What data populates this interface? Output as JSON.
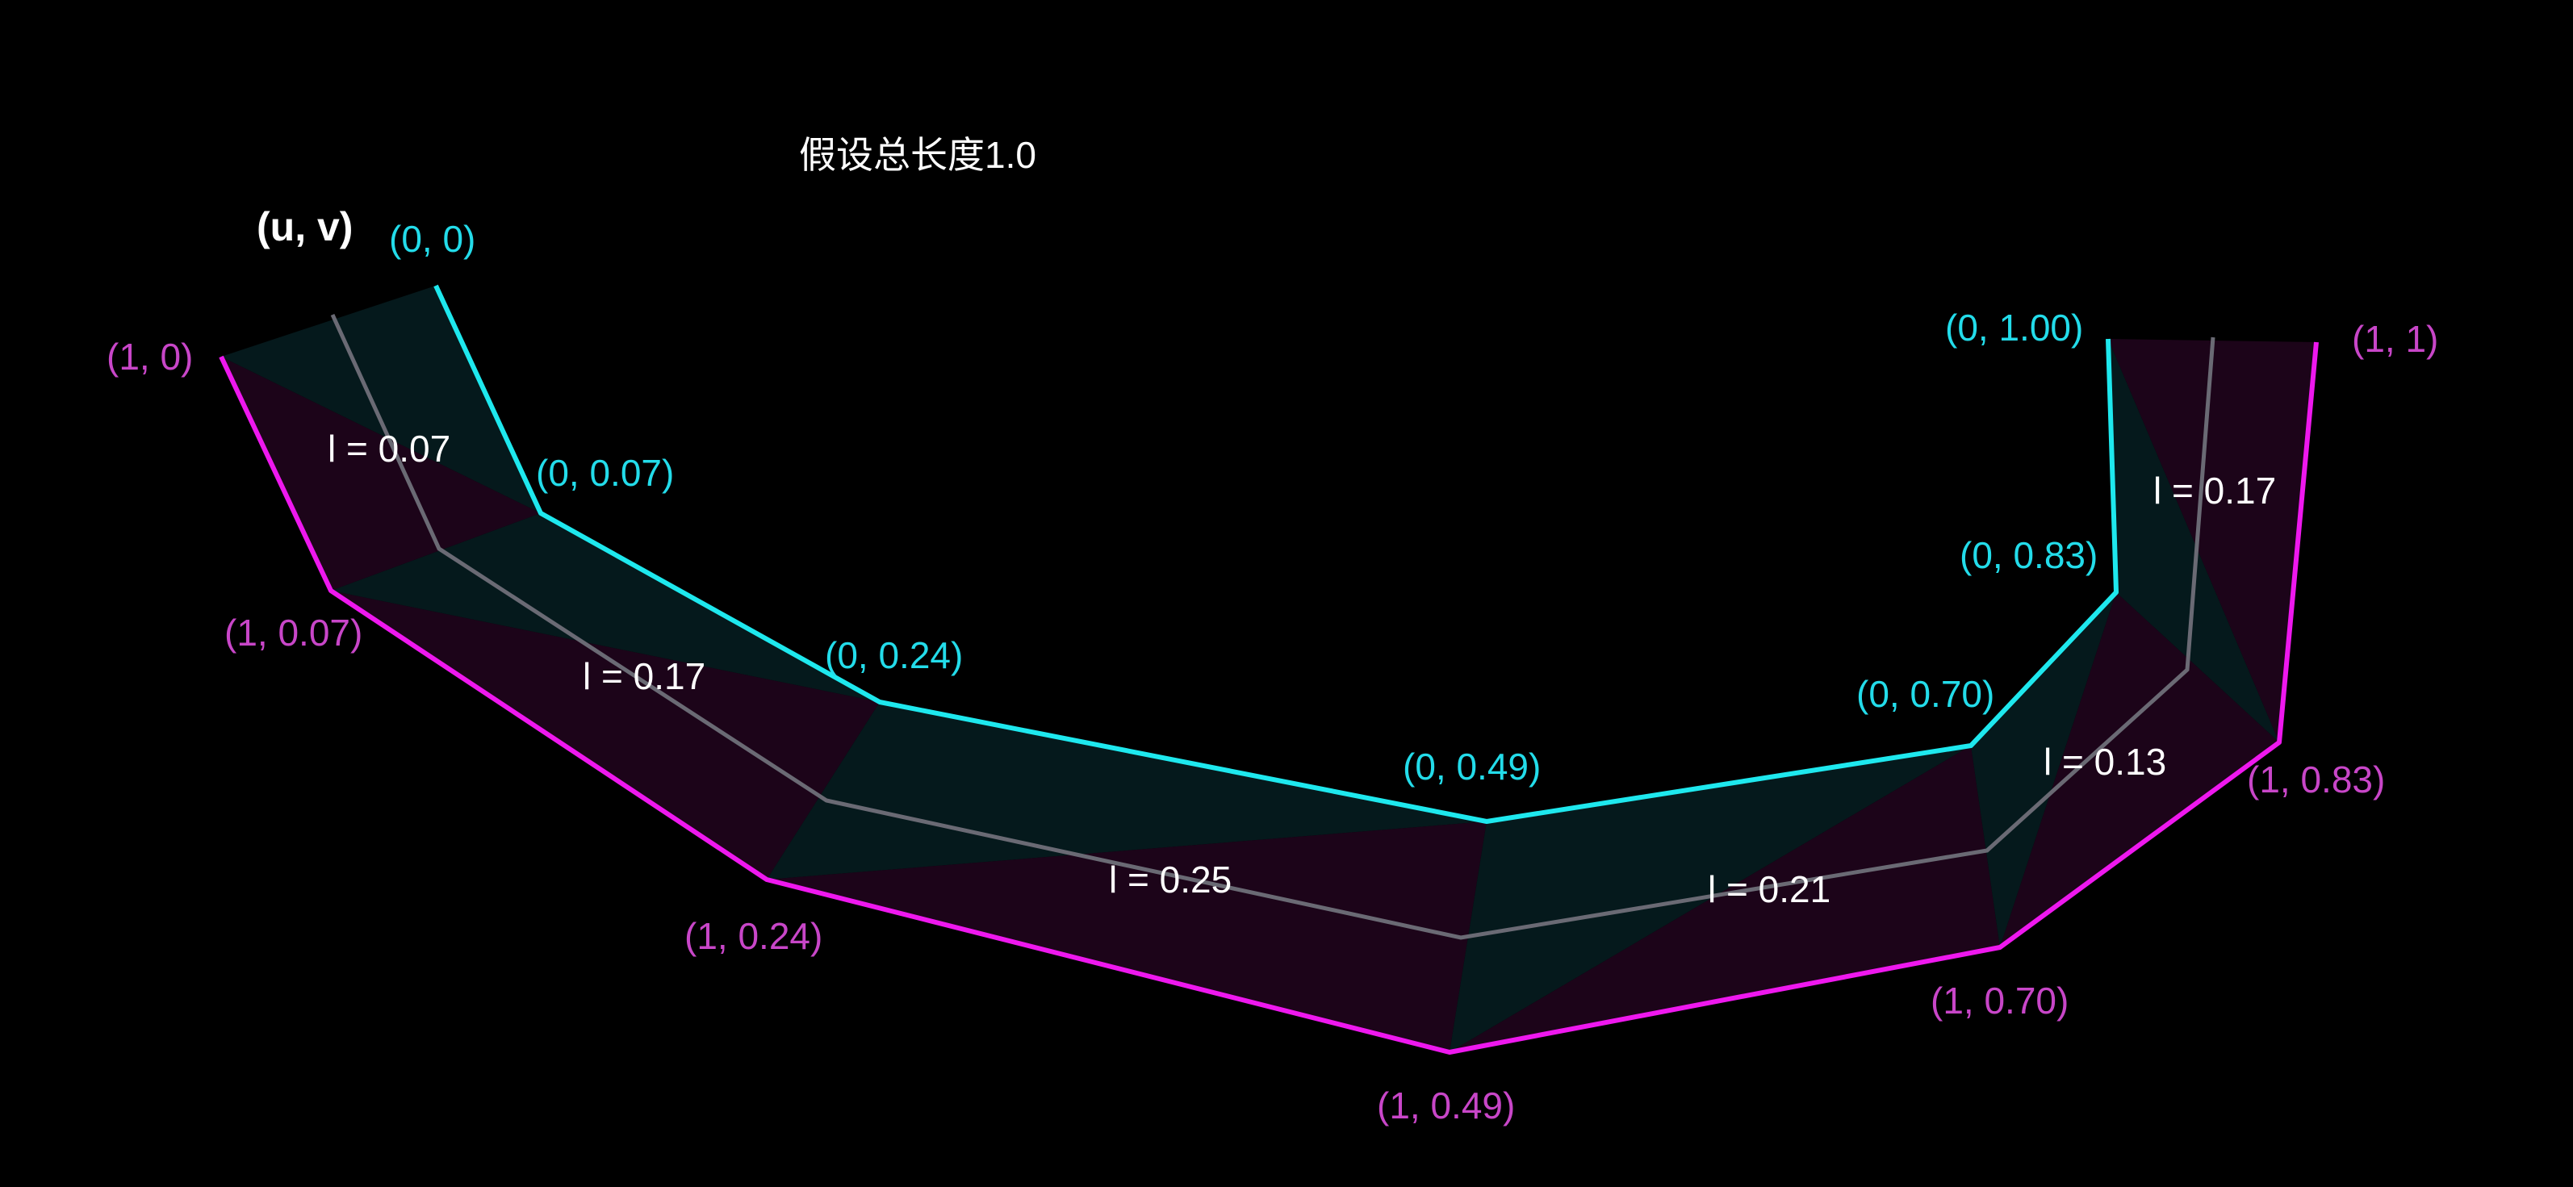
{
  "title": "假设总长度1.0",
  "axis_label": "(u, v)",
  "colors": {
    "background": "#000000",
    "cyan_edge": "#1ee8ee",
    "magenta_edge": "#ee18ee",
    "cyan_text": "#23dcea",
    "magenta_text": "#c846c8",
    "white_text": "#ffffff",
    "center_line": "#6a6a74",
    "fill_cyan": "#05191c",
    "fill_magenta": "#1c0419"
  },
  "cyan_labels": [
    "(0, 0)",
    "(0, 0.07)",
    "(0, 0.24)",
    "(0, 0.49)",
    "(0, 0.70)",
    "(0, 0.83)",
    "(0, 1.00)"
  ],
  "magenta_labels": [
    "(1, 0)",
    "(1, 0.07)",
    "(1, 0.24)",
    "(1, 0.49)",
    "(1, 0.70)",
    "(1, 0.83)",
    "(1, 1)"
  ],
  "segment_lengths": [
    "l = 0.07",
    "l = 0.17",
    "l = 0.25",
    "l = 0.21",
    "l = 0.13",
    "l = 0.17"
  ]
}
